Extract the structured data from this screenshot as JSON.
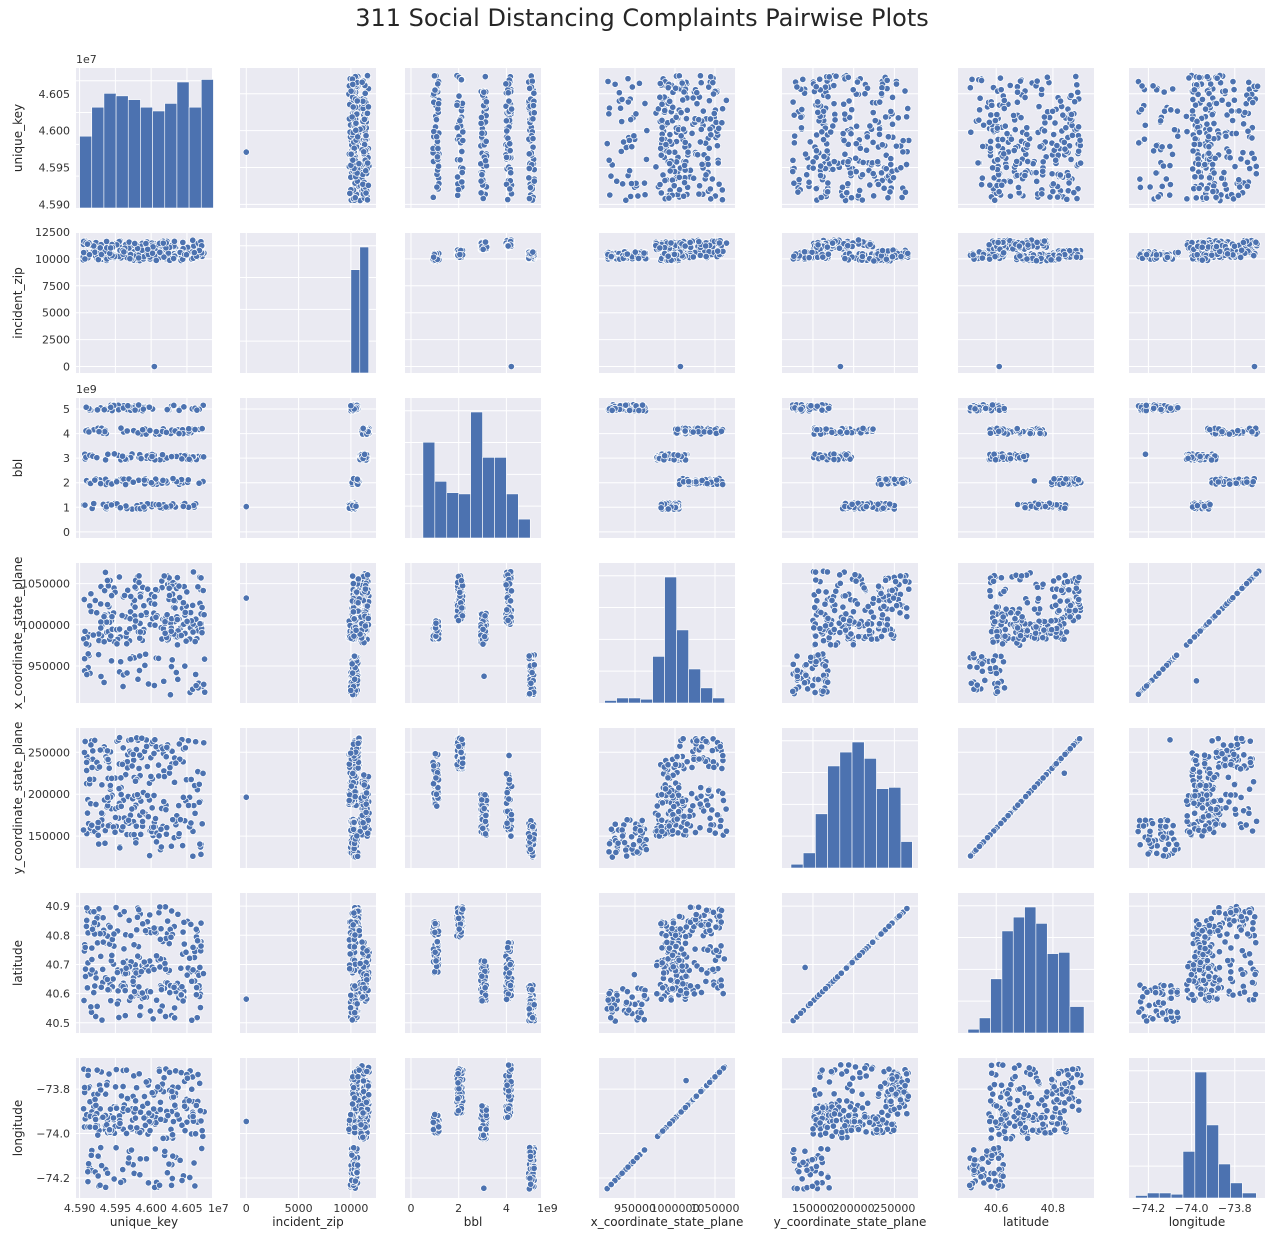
{
  "title": "311 Social Distancing Complaints Pairwise Plots",
  "colors": {
    "panel_bg": "#EAEAF2",
    "grid": "#FFFFFF",
    "mark": "#4C72B0",
    "text": "#262626",
    "tick_text": "#333333"
  },
  "chart_data": {
    "type": "scatter",
    "kind": "pairplot",
    "grid": true,
    "variables": [
      {
        "name": "unique_key",
        "xlim": [
          45895000,
          46085000
        ],
        "ticks": [
          45900000,
          45950000,
          46000000,
          46050000
        ],
        "tick_labels": [
          "4.590",
          "4.595",
          "4.600",
          "4.605"
        ],
        "offset": "1e7",
        "hist": [
          {
            "lo": 45900000,
            "hi": 45917000,
            "count": 0.57
          },
          {
            "lo": 45917000,
            "hi": 45934000,
            "count": 0.8
          },
          {
            "lo": 45934000,
            "hi": 45951000,
            "count": 0.91
          },
          {
            "lo": 45951000,
            "hi": 45968000,
            "count": 0.89
          },
          {
            "lo": 45968000,
            "hi": 45985000,
            "count": 0.86
          },
          {
            "lo": 45985000,
            "hi": 46002000,
            "count": 0.8
          },
          {
            "lo": 46002000,
            "hi": 46019000,
            "count": 0.77
          },
          {
            "lo": 46019000,
            "hi": 46036000,
            "count": 0.83
          },
          {
            "lo": 46036000,
            "hi": 46053000,
            "count": 1.0
          },
          {
            "lo": 46053000,
            "hi": 46070000,
            "count": 0.8
          },
          {
            "lo": 46070000,
            "hi": 46087000,
            "count": 1.02
          }
        ]
      },
      {
        "name": "incident_zip",
        "xlim": [
          -600,
          12400
        ],
        "ticks": [
          0,
          2500,
          5000,
          7500,
          10000,
          12500
        ],
        "tick_labels": [
          "0",
          "2500",
          "5000",
          "7500",
          "10000",
          "12500"
        ],
        "x_tick_labels": [
          "0",
          "5000",
          "10000"
        ],
        "x_ticks": [
          0,
          5000,
          10000
        ],
        "hist": [
          {
            "lo": 10000,
            "hi": 10850,
            "count": 0.82
          },
          {
            "lo": 10850,
            "hi": 11700,
            "count": 1.0
          }
        ]
      },
      {
        "name": "bbl",
        "xlim": [
          -250000000,
          5450000000
        ],
        "ticks": [
          0,
          1000000000,
          2000000000,
          3000000000,
          4000000000,
          5000000000
        ],
        "tick_labels": [
          "0",
          "1",
          "2",
          "3",
          "4",
          "5"
        ],
        "x_tick_labels": [
          "0",
          "2",
          "4"
        ],
        "x_ticks": [
          0,
          2000000000,
          4000000000
        ],
        "offset": "1e9",
        "hist": [
          {
            "lo": 500000000,
            "hi": 1000000000,
            "count": 0.76
          },
          {
            "lo": 1000000000,
            "hi": 1500000000,
            "count": 0.45
          },
          {
            "lo": 1500000000,
            "hi": 2000000000,
            "count": 0.36
          },
          {
            "lo": 2000000000,
            "hi": 2500000000,
            "count": 0.35
          },
          {
            "lo": 2500000000,
            "hi": 3000000000,
            "count": 1.0
          },
          {
            "lo": 3000000000,
            "hi": 3500000000,
            "count": 0.64
          },
          {
            "lo": 3500000000,
            "hi": 4000000000,
            "count": 0.64
          },
          {
            "lo": 4000000000,
            "hi": 4500000000,
            "count": 0.35
          },
          {
            "lo": 4500000000,
            "hi": 5000000000,
            "count": 0.15
          }
        ]
      },
      {
        "name": "x_coordinate_state_plane",
        "xlim": [
          905000,
          1075000
        ],
        "ticks": [
          950000,
          1000000,
          1050000
        ],
        "tick_labels": [
          "950000",
          "1000000",
          "1050000"
        ],
        "hist": [
          {
            "lo": 912000,
            "hi": 927000,
            "count": 0.02
          },
          {
            "lo": 927000,
            "hi": 942000,
            "count": 0.04
          },
          {
            "lo": 942000,
            "hi": 957000,
            "count": 0.04
          },
          {
            "lo": 957000,
            "hi": 972000,
            "count": 0.03
          },
          {
            "lo": 972000,
            "hi": 987000,
            "count": 0.37
          },
          {
            "lo": 987000,
            "hi": 1002000,
            "count": 1.0
          },
          {
            "lo": 1002000,
            "hi": 1017000,
            "count": 0.58
          },
          {
            "lo": 1017000,
            "hi": 1032000,
            "count": 0.27
          },
          {
            "lo": 1032000,
            "hi": 1047000,
            "count": 0.12
          },
          {
            "lo": 1047000,
            "hi": 1062000,
            "count": 0.04
          }
        ]
      },
      {
        "name": "y_coordinate_state_plane",
        "xlim": [
          112000,
          279000
        ],
        "ticks": [
          150000,
          200000,
          250000
        ],
        "tick_labels": [
          "150000",
          "200000",
          "250000"
        ],
        "hist": [
          {
            "lo": 123000,
            "hi": 138000,
            "count": 0.03
          },
          {
            "lo": 138000,
            "hi": 153000,
            "count": 0.12
          },
          {
            "lo": 153000,
            "hi": 168000,
            "count": 0.43
          },
          {
            "lo": 168000,
            "hi": 183000,
            "count": 0.81
          },
          {
            "lo": 183000,
            "hi": 198000,
            "count": 0.92
          },
          {
            "lo": 198000,
            "hi": 213000,
            "count": 1.0
          },
          {
            "lo": 213000,
            "hi": 228000,
            "count": 0.87
          },
          {
            "lo": 228000,
            "hi": 243000,
            "count": 0.63
          },
          {
            "lo": 243000,
            "hi": 258000,
            "count": 0.64
          },
          {
            "lo": 258000,
            "hi": 272000,
            "count": 0.21
          }
        ]
      },
      {
        "name": "latitude",
        "xlim": [
          40.465,
          40.945
        ],
        "ticks": [
          40.5,
          40.6,
          40.7,
          40.8,
          40.9
        ],
        "tick_labels": [
          "40.5",
          "40.6",
          "40.7",
          "40.8",
          "40.9"
        ],
        "x_tick_labels": [
          "40.6",
          "40.8"
        ],
        "x_ticks": [
          40.6,
          40.8
        ],
        "hist": [
          {
            "lo": 40.5,
            "hi": 40.54,
            "count": 0.03
          },
          {
            "lo": 40.54,
            "hi": 40.58,
            "count": 0.12
          },
          {
            "lo": 40.58,
            "hi": 40.62,
            "count": 0.43
          },
          {
            "lo": 40.62,
            "hi": 40.66,
            "count": 0.81
          },
          {
            "lo": 40.66,
            "hi": 40.7,
            "count": 0.92
          },
          {
            "lo": 40.7,
            "hi": 40.74,
            "count": 1.0
          },
          {
            "lo": 40.74,
            "hi": 40.78,
            "count": 0.87
          },
          {
            "lo": 40.78,
            "hi": 40.82,
            "count": 0.63
          },
          {
            "lo": 40.82,
            "hi": 40.86,
            "count": 0.64
          },
          {
            "lo": 40.86,
            "hi": 40.91,
            "count": 0.21
          }
        ]
      },
      {
        "name": "longitude",
        "xlim": [
          -74.29,
          -73.66
        ],
        "ticks": [
          -74.2,
          -74.0,
          -73.8
        ],
        "tick_labels": [
          "−74.2",
          "−74.0",
          "−73.8"
        ],
        "hist": [
          {
            "lo": -74.26,
            "hi": -74.205,
            "count": 0.02
          },
          {
            "lo": -74.205,
            "hi": -74.15,
            "count": 0.04
          },
          {
            "lo": -74.15,
            "hi": -74.095,
            "count": 0.04
          },
          {
            "lo": -74.095,
            "hi": -74.04,
            "count": 0.03
          },
          {
            "lo": -74.04,
            "hi": -73.985,
            "count": 0.37
          },
          {
            "lo": -73.985,
            "hi": -73.93,
            "count": 1.0
          },
          {
            "lo": -73.93,
            "hi": -73.875,
            "count": 0.58
          },
          {
            "lo": -73.875,
            "hi": -73.82,
            "count": 0.27
          },
          {
            "lo": -73.82,
            "hi": -73.765,
            "count": 0.12
          },
          {
            "lo": -73.765,
            "hi": -73.7,
            "count": 0.04
          }
        ]
      }
    ]
  }
}
